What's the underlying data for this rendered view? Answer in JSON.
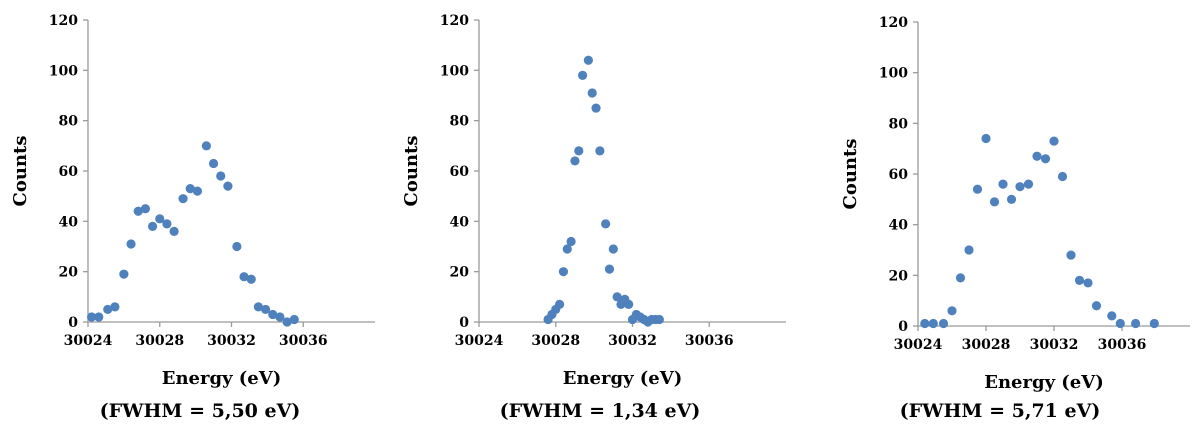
{
  "chart_data": [
    {
      "type": "scatter",
      "xlabel": "Energy (eV)",
      "ylabel": "Counts",
      "caption": "(FWHM = 5,50 eV)",
      "xlim": [
        30024,
        30040
      ],
      "ylim": [
        0,
        120
      ],
      "xticks": [
        30024,
        30028,
        30032,
        30036
      ],
      "yticks": [
        0,
        20,
        40,
        60,
        80,
        100,
        120
      ],
      "grid": false,
      "marker_color": "#4F81BD",
      "points": [
        [
          30024.2,
          2
        ],
        [
          30024.6,
          2
        ],
        [
          30025.1,
          5
        ],
        [
          30025.5,
          6
        ],
        [
          30026.0,
          19
        ],
        [
          30026.4,
          31
        ],
        [
          30026.8,
          44
        ],
        [
          30027.2,
          45
        ],
        [
          30027.6,
          38
        ],
        [
          30028.0,
          41
        ],
        [
          30028.4,
          39
        ],
        [
          30028.8,
          36
        ],
        [
          30029.3,
          49
        ],
        [
          30029.7,
          53
        ],
        [
          30030.1,
          52
        ],
        [
          30030.6,
          70
        ],
        [
          30031.0,
          63
        ],
        [
          30031.4,
          58
        ],
        [
          30031.8,
          54
        ],
        [
          30032.3,
          30
        ],
        [
          30032.7,
          18
        ],
        [
          30033.1,
          17
        ],
        [
          30033.5,
          6
        ],
        [
          30033.9,
          5
        ],
        [
          30034.3,
          3
        ],
        [
          30034.7,
          2
        ],
        [
          30035.1,
          0
        ],
        [
          30035.5,
          1
        ]
      ]
    },
    {
      "type": "scatter",
      "xlabel": "Energy (eV)",
      "ylabel": "Counts",
      "caption": "(FWHM = 1,34 eV)",
      "xlim": [
        30024,
        30040
      ],
      "ylim": [
        0,
        120
      ],
      "xticks": [
        30024,
        30028,
        30032,
        30036
      ],
      "yticks": [
        0,
        20,
        40,
        60,
        80,
        100,
        120
      ],
      "grid": false,
      "marker_color": "#4F81BD",
      "points": [
        [
          30027.6,
          1
        ],
        [
          30027.8,
          3
        ],
        [
          30028.0,
          5
        ],
        [
          30028.2,
          7
        ],
        [
          30028.4,
          20
        ],
        [
          30028.6,
          29
        ],
        [
          30028.8,
          32
        ],
        [
          30029.0,
          64
        ],
        [
          30029.2,
          68
        ],
        [
          30029.4,
          98
        ],
        [
          30029.7,
          104
        ],
        [
          30029.9,
          91
        ],
        [
          30030.1,
          85
        ],
        [
          30030.3,
          68
        ],
        [
          30030.6,
          39
        ],
        [
          30030.8,
          21
        ],
        [
          30031.0,
          29
        ],
        [
          30031.2,
          10
        ],
        [
          30031.4,
          7
        ],
        [
          30031.6,
          9
        ],
        [
          30031.8,
          7
        ],
        [
          30032.0,
          1
        ],
        [
          30032.2,
          3
        ],
        [
          30032.4,
          2
        ],
        [
          30032.6,
          1
        ],
        [
          30032.8,
          0
        ],
        [
          30033.0,
          1
        ],
        [
          30033.2,
          1
        ],
        [
          30033.4,
          1
        ]
      ]
    },
    {
      "type": "scatter",
      "xlabel": "Energy (eV)",
      "ylabel": "Counts",
      "caption": "(FWHM = 5,71 eV)",
      "xlim": [
        30024,
        30040
      ],
      "ylim": [
        0,
        120
      ],
      "xticks": [
        30024,
        30028,
        30032,
        30036
      ],
      "yticks": [
        0,
        20,
        40,
        60,
        80,
        100,
        120
      ],
      "grid": false,
      "marker_color": "#4F81BD",
      "points": [
        [
          30024.4,
          1
        ],
        [
          30024.9,
          1
        ],
        [
          30025.5,
          1
        ],
        [
          30026.0,
          6
        ],
        [
          30026.5,
          19
        ],
        [
          30027.0,
          30
        ],
        [
          30027.5,
          54
        ],
        [
          30028.0,
          74
        ],
        [
          30028.5,
          49
        ],
        [
          30029.0,
          56
        ],
        [
          30029.5,
          50
        ],
        [
          30030.0,
          55
        ],
        [
          30030.5,
          56
        ],
        [
          30031.0,
          67
        ],
        [
          30031.5,
          66
        ],
        [
          30032.0,
          73
        ],
        [
          30032.5,
          59
        ],
        [
          30033.0,
          28
        ],
        [
          30033.5,
          18
        ],
        [
          30034.0,
          17
        ],
        [
          30034.5,
          8
        ],
        [
          30035.4,
          4
        ],
        [
          30035.9,
          1
        ],
        [
          30036.8,
          1
        ],
        [
          30037.9,
          1
        ]
      ]
    }
  ]
}
